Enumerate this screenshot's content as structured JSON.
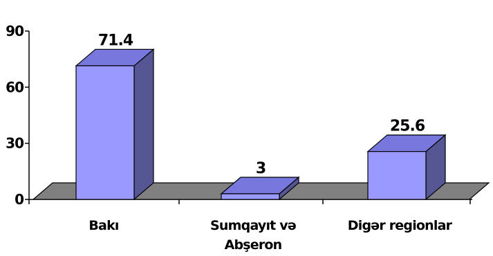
{
  "chart_data": {
    "type": "bar",
    "categories": [
      "Bakı",
      "Sumqayıt və Abşeron",
      "Digər regionlar"
    ],
    "category_lines": [
      [
        "Bakı"
      ],
      [
        "Sumqayıt və",
        "Abşeron"
      ],
      [
        "Digər regionlar"
      ]
    ],
    "values": [
      71.4,
      3,
      25.6
    ],
    "data_labels": [
      "71.4",
      "3",
      "25.6"
    ],
    "ylim": [
      0,
      90
    ],
    "yticks": [
      0,
      30,
      60,
      90
    ],
    "ytick_labels": [
      "0",
      "30",
      "60",
      "90"
    ],
    "title": "",
    "xlabel": "",
    "ylabel": "",
    "grid": false,
    "legend": "none",
    "style": "3d-column",
    "colors": {
      "bar_front": "#9999ff",
      "bar_top": "#7777dd",
      "bar_side": "#565694",
      "floor": "#808080",
      "axis": "#000000"
    }
  }
}
